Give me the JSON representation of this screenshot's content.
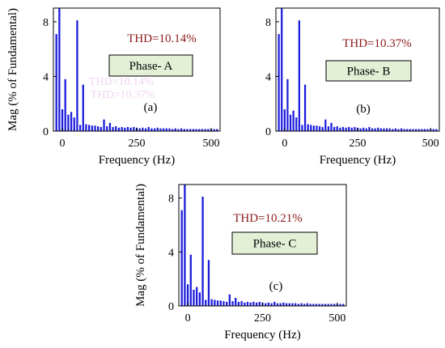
{
  "colors": {
    "bar": "#1c1cdc",
    "thd_text": "#8b1a1a",
    "phase_box_fill": "#e3f0d6",
    "axis": "#000000",
    "ghost_text": "#f2d4f2"
  },
  "chart_data": [
    {
      "type": "bar",
      "panel": "(a)",
      "ylabel": "Mag (% of Fundamental)",
      "xlabel": "Frequency (Hz)",
      "xticks": [
        0,
        250,
        500
      ],
      "yticks": [
        0,
        4,
        8
      ],
      "xlim": [
        -30,
        530
      ],
      "ylim": [
        0,
        9
      ],
      "thd_label": "THD=10.14%",
      "phase_label": "Phase- A",
      "ghost_text": [
        "THD=10.14%",
        "THD=10.37%"
      ],
      "x": [
        -20,
        -10,
        0,
        10,
        20,
        30,
        40,
        50,
        60,
        70,
        80,
        90,
        100,
        110,
        120,
        130,
        140,
        150,
        160,
        170,
        180,
        190,
        200,
        210,
        220,
        230,
        240,
        250,
        260,
        270,
        280,
        290,
        300,
        310,
        320,
        330,
        340,
        350,
        360,
        370,
        380,
        390,
        400,
        410,
        420,
        430,
        440,
        450,
        460,
        470,
        480,
        490,
        500,
        510,
        520
      ],
      "values": [
        7.1,
        9.0,
        1.6,
        3.8,
        1.2,
        1.4,
        1.0,
        8.1,
        0.45,
        3.4,
        0.5,
        0.45,
        0.4,
        0.4,
        0.35,
        0.3,
        0.85,
        0.35,
        0.6,
        0.3,
        0.35,
        0.25,
        0.3,
        0.25,
        0.3,
        0.25,
        0.3,
        0.25,
        0.2,
        0.25,
        0.2,
        0.3,
        0.2,
        0.2,
        0.25,
        0.2,
        0.2,
        0.2,
        0.2,
        0.15,
        0.2,
        0.15,
        0.2,
        0.15,
        0.15,
        0.15,
        0.15,
        0.15,
        0.15,
        0.15,
        0.15,
        0.15,
        0.15,
        0.15,
        0.15
      ]
    },
    {
      "type": "bar",
      "panel": "(b)",
      "ylabel": "",
      "xlabel": "Frequency (Hz)",
      "xticks": [
        0,
        250,
        500
      ],
      "yticks": [
        0,
        4,
        8
      ],
      "xlim": [
        -30,
        530
      ],
      "ylim": [
        0,
        9
      ],
      "thd_label": "THD=10.37%",
      "phase_label": "Phase- B",
      "ghost_text": [],
      "x": [
        -20,
        -10,
        0,
        10,
        20,
        30,
        40,
        50,
        60,
        70,
        80,
        90,
        100,
        110,
        120,
        130,
        140,
        150,
        160,
        170,
        180,
        190,
        200,
        210,
        220,
        230,
        240,
        250,
        260,
        270,
        280,
        290,
        300,
        310,
        320,
        330,
        340,
        350,
        360,
        370,
        380,
        390,
        400,
        410,
        420,
        430,
        440,
        450,
        460,
        470,
        480,
        490,
        500,
        510,
        520
      ],
      "values": [
        7.1,
        9.0,
        1.6,
        3.8,
        1.2,
        1.5,
        1.0,
        8.1,
        0.45,
        3.4,
        0.5,
        0.45,
        0.4,
        0.4,
        0.35,
        0.3,
        0.85,
        0.35,
        0.6,
        0.3,
        0.35,
        0.25,
        0.3,
        0.25,
        0.3,
        0.25,
        0.3,
        0.25,
        0.2,
        0.25,
        0.2,
        0.3,
        0.2,
        0.2,
        0.25,
        0.2,
        0.2,
        0.2,
        0.2,
        0.15,
        0.2,
        0.15,
        0.2,
        0.15,
        0.15,
        0.15,
        0.15,
        0.15,
        0.15,
        0.15,
        0.15,
        0.15,
        0.15,
        0.15,
        0.15
      ]
    },
    {
      "type": "bar",
      "panel": "(c)",
      "ylabel": "Mag (% of Fundamental)",
      "xlabel": "Frequency (Hz)",
      "xticks": [
        0,
        250,
        500
      ],
      "yticks": [
        0,
        4,
        8
      ],
      "xlim": [
        -30,
        530
      ],
      "ylim": [
        0,
        9
      ],
      "thd_label": "THD=10.21%",
      "phase_label": "Phase- C",
      "ghost_text": [],
      "x": [
        -20,
        -10,
        0,
        10,
        20,
        30,
        40,
        50,
        60,
        70,
        80,
        90,
        100,
        110,
        120,
        130,
        140,
        150,
        160,
        170,
        180,
        190,
        200,
        210,
        220,
        230,
        240,
        250,
        260,
        270,
        280,
        290,
        300,
        310,
        320,
        330,
        340,
        350,
        360,
        370,
        380,
        390,
        400,
        410,
        420,
        430,
        440,
        450,
        460,
        470,
        480,
        490,
        500,
        510,
        520
      ],
      "values": [
        7.1,
        9.0,
        1.6,
        3.8,
        1.2,
        1.4,
        1.0,
        8.1,
        0.45,
        3.4,
        0.5,
        0.45,
        0.4,
        0.4,
        0.35,
        0.3,
        0.85,
        0.35,
        0.6,
        0.3,
        0.35,
        0.25,
        0.3,
        0.25,
        0.3,
        0.25,
        0.3,
        0.25,
        0.2,
        0.25,
        0.2,
        0.3,
        0.2,
        0.2,
        0.25,
        0.2,
        0.2,
        0.2,
        0.2,
        0.15,
        0.2,
        0.15,
        0.2,
        0.15,
        0.15,
        0.15,
        0.15,
        0.15,
        0.15,
        0.15,
        0.15,
        0.15,
        0.15,
        0.15,
        0.15
      ]
    }
  ]
}
